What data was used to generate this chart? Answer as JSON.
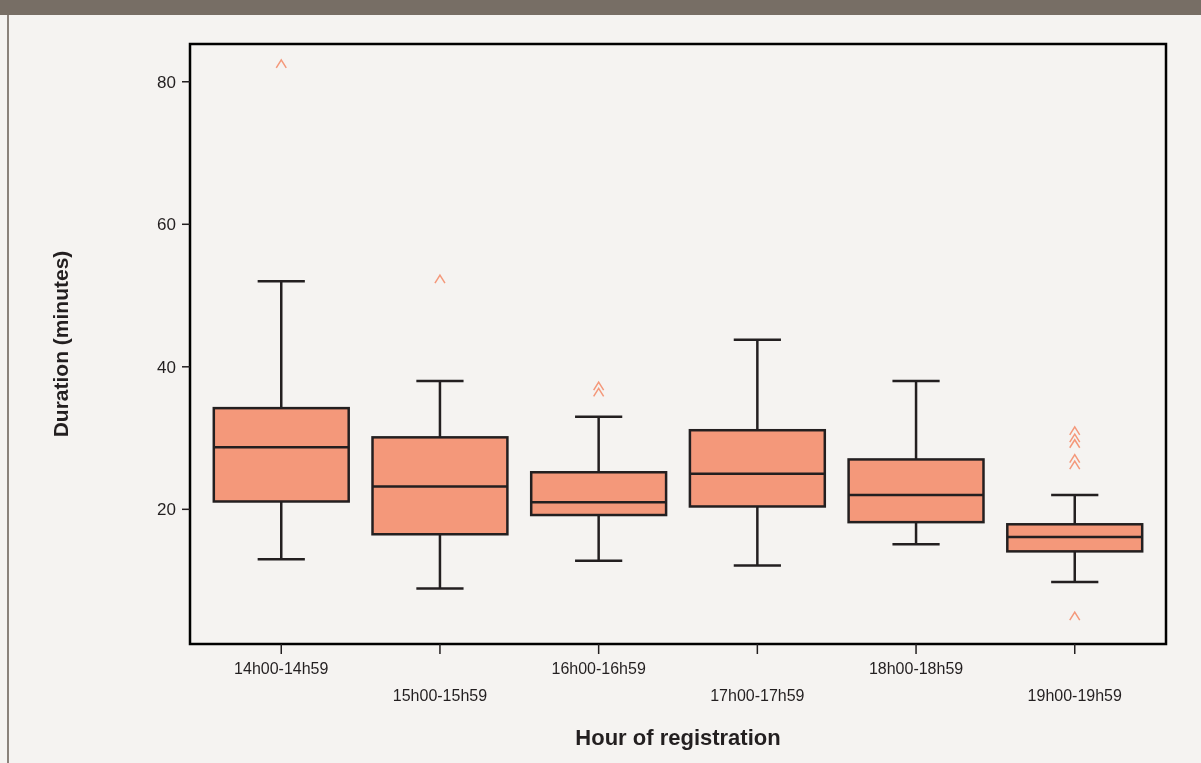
{
  "chart_data": {
    "type": "box",
    "xlabel": "Hour of registration",
    "ylabel": "Duration (minutes)",
    "categories": [
      "14h00-14h59",
      "15h00-15h59",
      "16h00-16h59",
      "17h00-17h59",
      "18h00-18h59",
      "19h00-19h59"
    ],
    "color": "#f4987a",
    "boxes": [
      {
        "low": 13,
        "q1": 21.1,
        "median": 28.7,
        "q3": 34.2,
        "high": 52,
        "outliers": [
          82.5
        ]
      },
      {
        "low": 8.9,
        "q1": 16.5,
        "median": 23.2,
        "q3": 30.1,
        "high": 38,
        "outliers": [
          52.3
        ]
      },
      {
        "low": 12.8,
        "q1": 19.2,
        "median": 21,
        "q3": 25.2,
        "high": 33,
        "outliers": [
          37.3,
          36.4
        ]
      },
      {
        "low": 12.1,
        "q1": 20.4,
        "median": 25,
        "q3": 31.1,
        "high": 43.8
      },
      {
        "low": 15.1,
        "q1": 18.2,
        "median": 22,
        "q3": 27,
        "high": 38
      },
      {
        "low": 9.8,
        "q1": 14.1,
        "median": 16.1,
        "q3": 17.9,
        "high": 22,
        "outliers": [
          31,
          30,
          29.2,
          27.1,
          26.2,
          5
        ]
      }
    ],
    "ylim": [
      1.1,
      85.3
    ],
    "yticks": [
      20,
      40,
      60,
      80
    ],
    "grid": false
  }
}
